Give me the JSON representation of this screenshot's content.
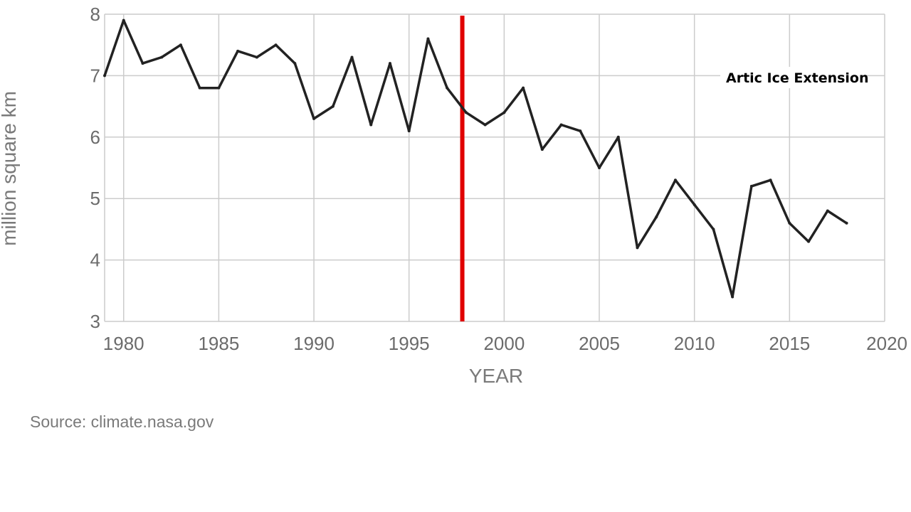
{
  "chart_data": {
    "type": "line",
    "xlabel": "YEAR",
    "ylabel": "million square km",
    "xlim": [
      1979,
      2020
    ],
    "ylim": [
      3,
      8
    ],
    "x_ticks": [
      "1980",
      "1985",
      "1990",
      "1995",
      "2000",
      "2005",
      "2010",
      "2015",
      "2020"
    ],
    "y_ticks": [
      "3",
      "4",
      "5",
      "6",
      "7",
      "8"
    ],
    "grid": true,
    "series": [
      {
        "color": "#222222",
        "x": [
          1979,
          1980,
          1981,
          1982,
          1983,
          1984,
          1985,
          1986,
          1987,
          1988,
          1989,
          1990,
          1991,
          1992,
          1993,
          1994,
          1995,
          1996,
          1997,
          1998,
          1999,
          2000,
          2001,
          2002,
          2003,
          2004,
          2005,
          2006,
          2007,
          2008,
          2009,
          2010,
          2011,
          2012,
          2013,
          2014,
          2015,
          2016,
          2017,
          2018
        ],
        "y": [
          7.0,
          7.9,
          7.2,
          7.3,
          7.5,
          6.8,
          6.8,
          7.4,
          7.3,
          7.5,
          7.2,
          6.3,
          6.5,
          7.3,
          6.2,
          7.2,
          6.1,
          7.6,
          6.8,
          6.4,
          6.2,
          6.4,
          6.8,
          5.8,
          6.2,
          6.1,
          5.5,
          6.0,
          4.2,
          4.7,
          5.3,
          4.9,
          4.5,
          3.4,
          5.2,
          5.3,
          4.6,
          4.3,
          4.8,
          4.6
        ]
      }
    ],
    "vertical_marker": {
      "x": 1997.8,
      "color": "#e00000"
    },
    "annotation": "Artic Ice Extension",
    "colors": {
      "line": "#222222",
      "grid": "#cccccc",
      "marker": "#e00000"
    }
  },
  "source": "Source:  climate.nasa.gov"
}
